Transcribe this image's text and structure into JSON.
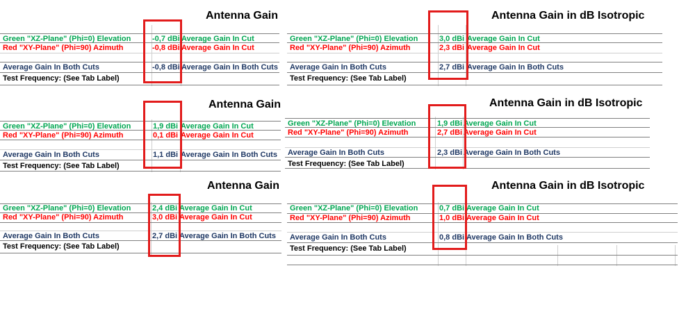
{
  "panels": [
    {
      "title": "Antenna Gain",
      "green_label": "Green \"XZ-Plane\" (Phi=0) Elevation",
      "red_label": "Red \"XY-Plane\" (Phi=90) Azimuth",
      "both_label": "Average Gain In Both Cuts",
      "freq_label": "Test Frequency: (See Tab Label)",
      "green_value": "-0,7 dBi",
      "red_value": "-0,8 dBi",
      "both_value": "-0,8 dBi",
      "green_desc": "Average Gain In Cut",
      "red_desc": "Average Gain In Cut",
      "both_desc": "Average Gain In Both Cuts"
    },
    {
      "title": "Antenna Gain in dB Isotropic",
      "green_label": "Green \"XZ-Plane\" (Phi=0) Elevation",
      "red_label": "Red \"XY-Plane\" (Phi=90) Azimuth",
      "both_label": "Average Gain In Both Cuts",
      "freq_label": "Test Frequency: (See Tab Label)",
      "green_value": "3,0 dBi",
      "red_value": "2,3 dBi",
      "both_value": "2,7 dBi",
      "green_desc": "Average Gain In Cut",
      "red_desc": "Average Gain In Cut",
      "both_desc": "Average Gain In Both Cuts"
    },
    {
      "title": "Antenna Gain",
      "green_label": "Green \"XZ-Plane\" (Phi=0) Elevation",
      "red_label": "Red \"XY-Plane\" (Phi=90) Azimuth",
      "both_label": "Average Gain In Both Cuts",
      "freq_label": "Test Frequency: (See Tab Label)",
      "green_value": "1,9 dBi",
      "red_value": "0,1 dBi",
      "both_value": "1,1 dBi",
      "green_desc": "Average Gain In Cut",
      "red_desc": "Average Gain In Cut",
      "both_desc": "Average Gain In Both Cuts"
    },
    {
      "title": "Antenna Gain in dB Isotropic",
      "green_label": "Green \"XZ-Plane\" (Phi=0) Elevation",
      "red_label": "Red \"XY-Plane\" (Phi=90) Azimuth",
      "both_label": "Average Gain In Both Cuts",
      "freq_label": "Test Frequency: (See Tab Label)",
      "green_value": "1,9 dBi",
      "red_value": "2,7 dBi",
      "both_value": "2,3 dBi",
      "green_desc": "Average Gain In Cut",
      "red_desc": "Average Gain In Cut",
      "both_desc": "Average Gain In Both Cuts"
    },
    {
      "title": "Antenna Gain",
      "green_label": "Green \"XZ-Plane\" (Phi=0) Elevation",
      "red_label": "Red \"XY-Plane\" (Phi=90) Azimuth",
      "both_label": "Average Gain In Both Cuts",
      "freq_label": "Test Frequency: (See Tab Label)",
      "green_value": "2,4 dBi",
      "red_value": "3,0 dBi",
      "both_value": "2,7 dBi",
      "green_desc": "Average Gain In Cut",
      "red_desc": "Average Gain In Cut",
      "both_desc": "Average Gain In Both Cuts"
    },
    {
      "title": "Antenna Gain in dB Isotropic",
      "green_label": "Green \"XZ-Plane\" (Phi=0) Elevation",
      "red_label": "Red \"XY-Plane\" (Phi=90) Azimuth",
      "both_label": "Average Gain In Both Cuts",
      "freq_label": "Test Frequency: (See Tab Label)",
      "green_value": "0,7 dBi",
      "red_value": "1,0 dBi",
      "both_value": "0,8 dBi",
      "green_desc": "Average Gain In Cut",
      "red_desc": "Average Gain In Cut",
      "both_desc": "Average Gain In Both Cuts"
    }
  ],
  "colors": {
    "green": "#00a651",
    "red": "#ff0000",
    "navy": "#1f3864",
    "highlight": "#e21b1b"
  }
}
